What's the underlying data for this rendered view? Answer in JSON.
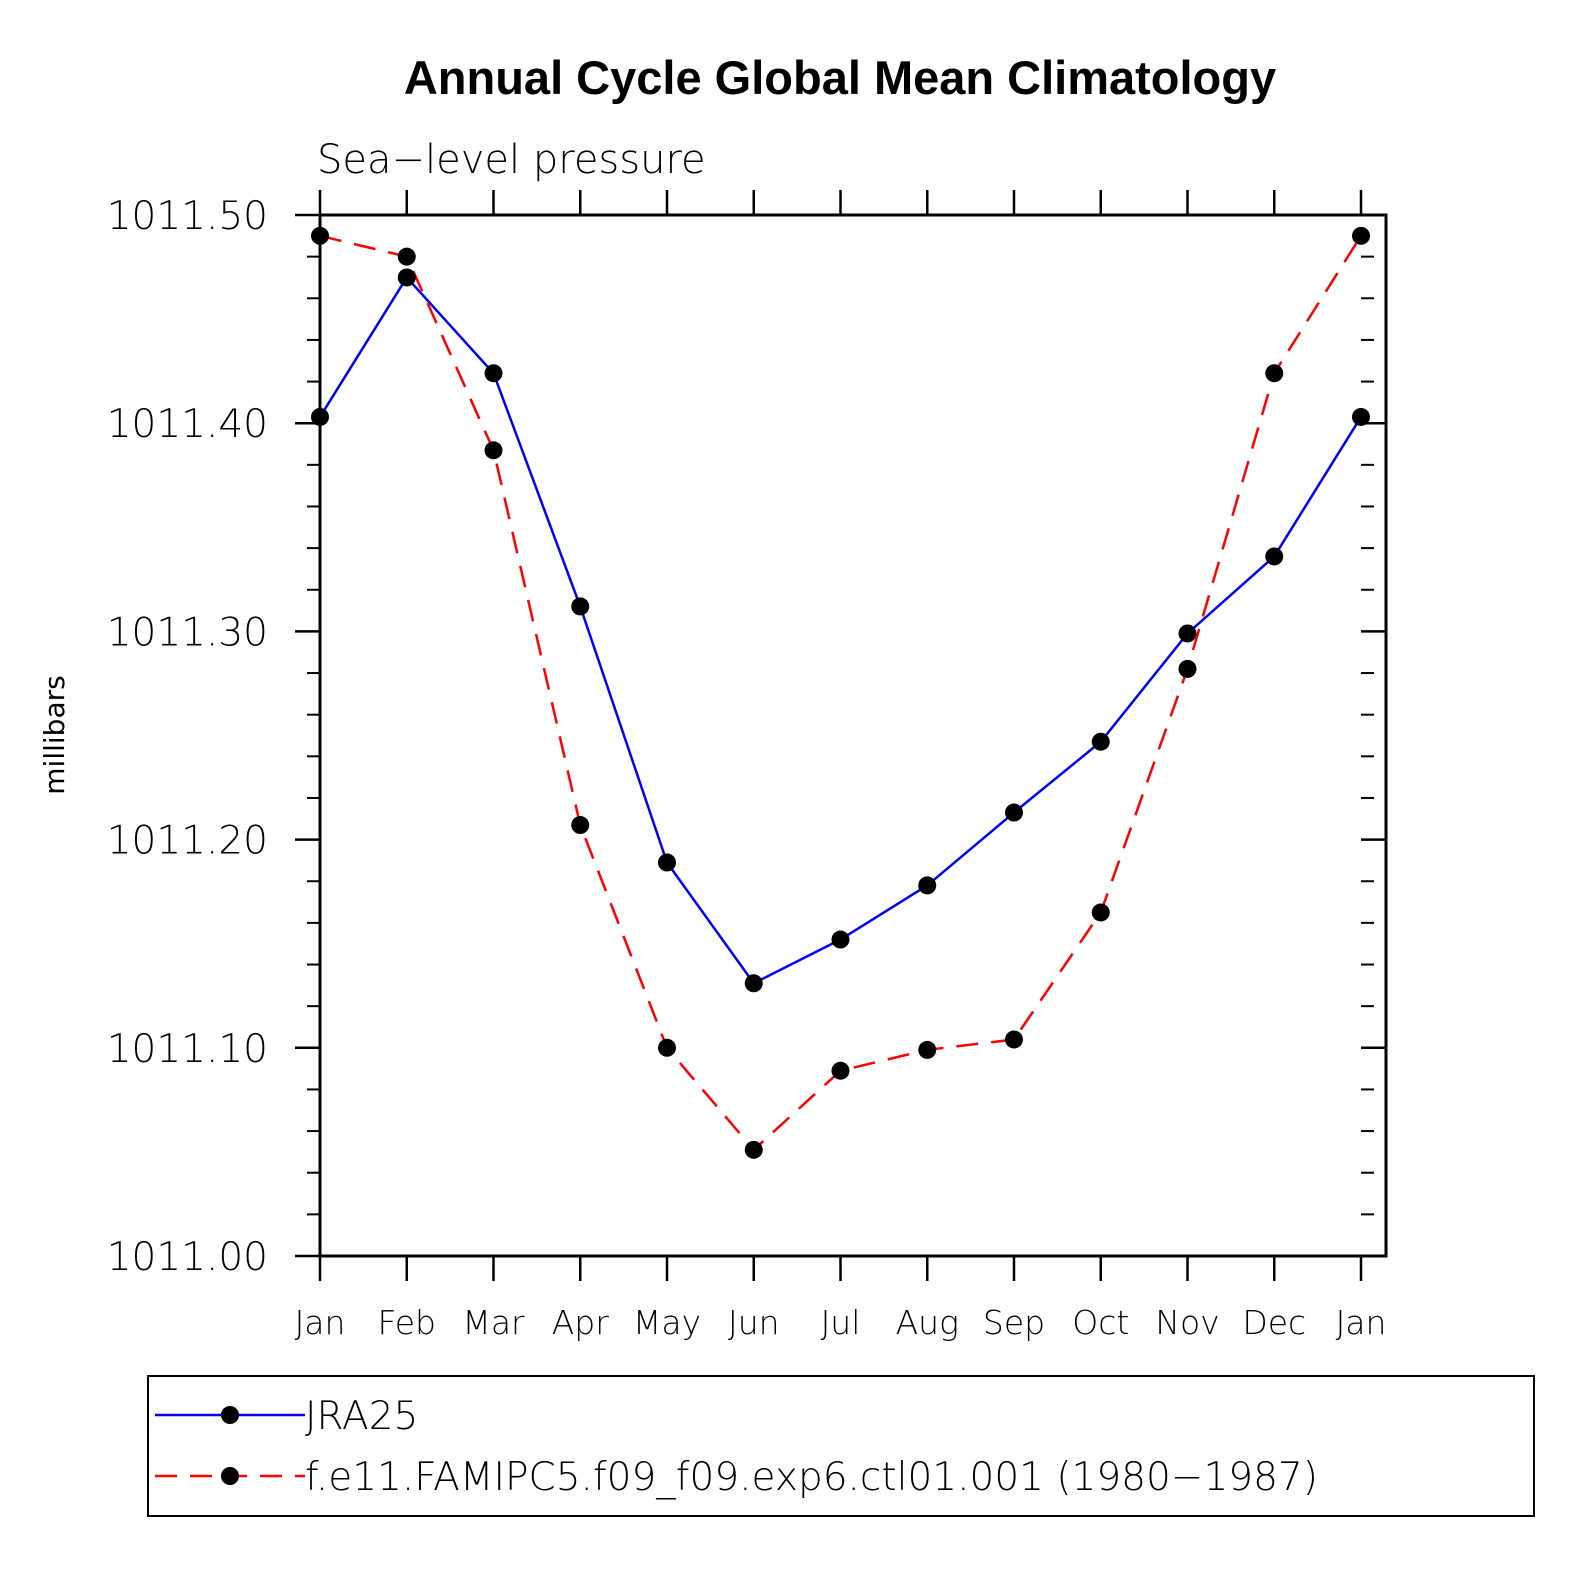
{
  "chart_data": {
    "type": "line",
    "title": "Annual Cycle Global Mean Climatology",
    "subtitle": "Sea−level pressure",
    "xlabel": "",
    "ylabel": "millibars",
    "categories": [
      "Jan",
      "Feb",
      "Mar",
      "Apr",
      "May",
      "Jun",
      "Jul",
      "Aug",
      "Sep",
      "Oct",
      "Nov",
      "Dec",
      "Jan"
    ],
    "ylim": [
      1011.0,
      1011.5
    ],
    "yticks": [
      {
        "value": 1011.0,
        "label": "1011.00"
      },
      {
        "value": 1011.1,
        "label": "1011.10"
      },
      {
        "value": 1011.2,
        "label": "1011.20"
      },
      {
        "value": 1011.3,
        "label": "1011.30"
      },
      {
        "value": 1011.4,
        "label": "1011.40"
      },
      {
        "value": 1011.5,
        "label": "1011.50"
      }
    ],
    "y_minor_step": 0.02,
    "series": [
      {
        "name": "JRA25",
        "color": "#0000ff",
        "dash": "solid",
        "values": [
          1011.403,
          1011.47,
          1011.424,
          1011.312,
          1011.189,
          1011.131,
          1011.152,
          1011.178,
          1011.213,
          1011.247,
          1011.299,
          1011.336,
          1011.403
        ]
      },
      {
        "name": "f.e11.FAMIPC5.f09_f09.exp6.ctl01.001 (1980−1987)",
        "color": "#ff0000",
        "dash": "dashed",
        "values": [
          1011.49,
          1011.48,
          1011.387,
          1011.207,
          1011.1,
          1011.051,
          1011.089,
          1011.099,
          1011.104,
          1011.165,
          1011.282,
          1011.424,
          1011.49
        ]
      }
    ],
    "marker_color": "#000000",
    "legend_position": "bottom",
    "grid": false
  }
}
